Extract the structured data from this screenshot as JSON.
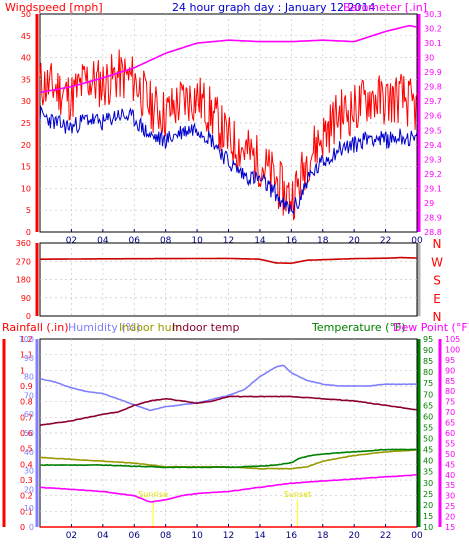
{
  "title": "24 hour graph day : January 12 2014",
  "colors": {
    "red": "#ff0000",
    "blue": "#0000cc",
    "magenta": "#ff00ff",
    "darkred": "#cc0000",
    "humidity": "#8080ff",
    "indoor_hum": "#999900",
    "indoor_temp": "#8b0030",
    "temperature": "#008000",
    "dewpoint": "#ff00ff",
    "axis_gray": "#b0b0b0",
    "grid": "#c8c8c8",
    "frame": "#000000",
    "time_tick": "#000080"
  },
  "chart_data": [
    {
      "type": "line",
      "title": "24 hour graph day : January 12 2014",
      "x_ticks": [
        "02",
        "04",
        "06",
        "08",
        "10",
        "12",
        "14",
        "16",
        "18",
        "20",
        "22",
        "00"
      ],
      "left_axis_label": "Windspeed [mph]",
      "right_axis_label": "Barometer [.in]",
      "left_ylim": [
        0,
        50
      ],
      "left_ticks": [
        "0",
        "5",
        "10",
        "15",
        "20",
        "25",
        "30",
        "35",
        "40",
        "45",
        "50"
      ],
      "right_ylim": [
        28.8,
        30.3
      ],
      "right_ticks": [
        "28.8",
        "28.9",
        "29",
        "29.1",
        "29.2",
        "29.3",
        "29.4",
        "29.5",
        "29.6",
        "29.7",
        "29.8",
        "29.9",
        "30",
        "30.1",
        "30.2",
        "30.3"
      ],
      "grid": true,
      "series": [
        {
          "name": "Windspeed",
          "axis": "left",
          "color": "#ff0000",
          "x": [
            0,
            1,
            2,
            3,
            4,
            5,
            6,
            7,
            8,
            9,
            10,
            11,
            12,
            13,
            14,
            15,
            15.5,
            16,
            16.5,
            17,
            18,
            19,
            20,
            21,
            22,
            23,
            24
          ],
          "y": [
            34,
            33,
            31,
            35,
            34,
            36,
            35,
            29,
            27,
            30,
            31,
            27,
            21,
            19,
            16,
            12,
            9,
            8,
            11,
            17,
            22,
            27,
            28,
            31,
            30,
            31,
            28
          ],
          "spread": 6
        },
        {
          "name": "Windspeed (avg)",
          "axis": "left",
          "color": "#0000cc",
          "x": [
            0,
            1,
            2,
            3,
            4,
            5,
            6,
            7,
            8,
            9,
            10,
            11,
            12,
            13,
            14,
            15,
            15.5,
            16,
            16.5,
            17,
            18,
            19,
            20,
            21,
            22,
            23,
            24
          ],
          "y": [
            27,
            25,
            24,
            26,
            25,
            27,
            26,
            22,
            21,
            23,
            24,
            21,
            16,
            13,
            12,
            9,
            6,
            5,
            7,
            12,
            16,
            19,
            20,
            22,
            21,
            22,
            21
          ],
          "spread": 2
        },
        {
          "name": "Barometer",
          "axis": "right",
          "color": "#ff00ff",
          "x": [
            0,
            2,
            4,
            6,
            8,
            10,
            12,
            14,
            16,
            18,
            20,
            22,
            23.5,
            24
          ],
          "y": [
            29.76,
            29.8,
            29.86,
            29.93,
            30.03,
            30.1,
            30.12,
            30.11,
            30.11,
            30.12,
            30.11,
            30.18,
            30.22,
            30.21
          ]
        }
      ]
    },
    {
      "type": "line",
      "left_ylim": [
        0,
        360
      ],
      "left_ticks": [
        "0",
        "90",
        "180",
        "270",
        "360"
      ],
      "right_labels": [
        "N",
        "W",
        "S",
        "E",
        "N"
      ],
      "grid": true,
      "series": [
        {
          "name": "Wind direction",
          "axis": "left",
          "color": "#cc0000",
          "x": [
            0,
            4,
            8,
            12,
            14,
            15,
            16,
            17,
            20,
            22,
            23,
            24
          ],
          "y": [
            280,
            282,
            283,
            284,
            280,
            262,
            260,
            275,
            283,
            285,
            288,
            286
          ]
        }
      ]
    },
    {
      "type": "line",
      "left_axis_label": "Rainfall (.in)",
      "left_ylim": [
        0,
        1.2
      ],
      "left_ticks": [
        "0",
        "0.1",
        "0.2",
        "0.3",
        "0.4",
        "0.5",
        "0.6",
        "0.7",
        "0.8",
        "0.9",
        "1",
        "1.1",
        "1.2"
      ],
      "left2_ylim": [
        0,
        100
      ],
      "left2_ticks": [
        "0",
        "10",
        "20",
        "30",
        "40",
        "50",
        "60",
        "70",
        "80",
        "90",
        "100"
      ],
      "right_axis_label": "Temperature (°F)",
      "right_ylim": [
        10,
        95
      ],
      "right_ticks": [
        "10",
        "15",
        "20",
        "25",
        "30",
        "35",
        "40",
        "45",
        "50",
        "55",
        "60",
        "65",
        "70",
        "75",
        "80",
        "85",
        "90",
        "95"
      ],
      "right2_ylim": [
        15,
        105
      ],
      "right2_ticks": [
        "15",
        "20",
        "25",
        "30",
        "35",
        "40",
        "45",
        "50",
        "55",
        "60",
        "65",
        "70",
        "75",
        "80",
        "85",
        "90",
        "95",
        "100",
        "105"
      ],
      "legend_labels": [
        "Rainfall (.in)",
        "Humidity (%)",
        "Indoor hum",
        "Indoor temp",
        "Temperature (°F)",
        "Dew Point (°F)"
      ],
      "event_labels": [
        "Sunrise",
        "Sunset"
      ],
      "events_x": [
        7.2,
        16.4
      ],
      "grid": true,
      "series": [
        {
          "name": "Humidity (%)",
          "axis": "left2",
          "color": "#8080ff",
          "x": [
            0,
            1,
            2,
            3,
            4,
            5,
            6,
            7,
            8,
            9,
            10,
            11,
            12,
            13,
            14,
            15,
            15.5,
            16,
            17,
            18,
            19,
            20,
            21,
            22,
            23,
            24
          ],
          "y": [
            79,
            77,
            74,
            72,
            71,
            68,
            65,
            62,
            64,
            65,
            66,
            68,
            70,
            73,
            80,
            85,
            86,
            82,
            78,
            76,
            75,
            75,
            75,
            76,
            76,
            76
          ]
        },
        {
          "name": "Indoor hum",
          "axis": "left2",
          "color": "#999900",
          "x": [
            0,
            2,
            4,
            6,
            8,
            10,
            12,
            14,
            16,
            17,
            18,
            20,
            22,
            24
          ],
          "y": [
            37,
            36,
            35,
            34,
            32,
            32,
            32,
            31,
            31,
            32,
            35,
            38,
            40,
            41
          ]
        },
        {
          "name": "Indoor temp",
          "axis": "right",
          "color": "#8b0030",
          "x": [
            0,
            2,
            4,
            5,
            6,
            7,
            8,
            9,
            10,
            11,
            12,
            14,
            16,
            18,
            20,
            22,
            24
          ],
          "y": [
            56,
            58,
            61,
            62,
            65,
            67,
            68,
            67,
            66,
            67,
            69,
            69,
            69,
            68,
            67,
            65,
            63
          ]
        },
        {
          "name": "Temperature (°F)",
          "axis": "right",
          "color": "#008000",
          "x": [
            0,
            2,
            4,
            6,
            8,
            10,
            12,
            14,
            15,
            16,
            16.5,
            17,
            18,
            20,
            22,
            24
          ],
          "y": [
            38,
            38,
            38,
            37.5,
            37,
            37,
            37,
            37.5,
            38,
            39,
            41,
            42,
            43,
            44,
            45,
            45
          ]
        },
        {
          "name": "Dew Point (°F)",
          "axis": "right2",
          "color": "#ff00ff",
          "x": [
            0,
            2,
            4,
            6,
            7,
            8,
            9,
            10,
            12,
            14,
            16,
            18,
            20,
            22,
            24
          ],
          "y": [
            34,
            33,
            32,
            30,
            27,
            28,
            30,
            31,
            32,
            34,
            36,
            37,
            38,
            39,
            40
          ]
        },
        {
          "name": "Rainfall (.in)",
          "axis": "left",
          "color": "#ff0000",
          "x": [
            0,
            24
          ],
          "y": [
            0,
            0
          ]
        }
      ]
    }
  ]
}
